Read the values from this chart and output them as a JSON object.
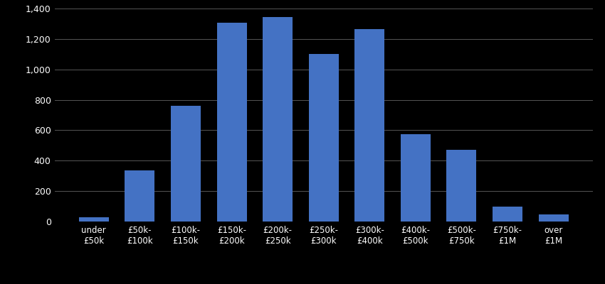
{
  "categories": [
    "under\n£50k",
    "£50k-\n£100k",
    "£100k-\n£150k",
    "£150k-\n£200k",
    "£200k-\n£250k",
    "£250k-\n£300k",
    "£300k-\n£400k",
    "£400k-\n£500k",
    "£500k-\n£750k",
    "£750k-\n£1M",
    "over\n£1M"
  ],
  "values": [
    30,
    335,
    760,
    1305,
    1345,
    1100,
    1265,
    575,
    470,
    100,
    45
  ],
  "bar_color": "#4472c4",
  "background_color": "#000000",
  "text_color": "#ffffff",
  "grid_color": "#555555",
  "ylim": [
    0,
    1400
  ],
  "yticks": [
    0,
    200,
    400,
    600,
    800,
    1000,
    1200,
    1400
  ],
  "figsize": [
    8.5,
    4.0
  ],
  "dpi": 100
}
